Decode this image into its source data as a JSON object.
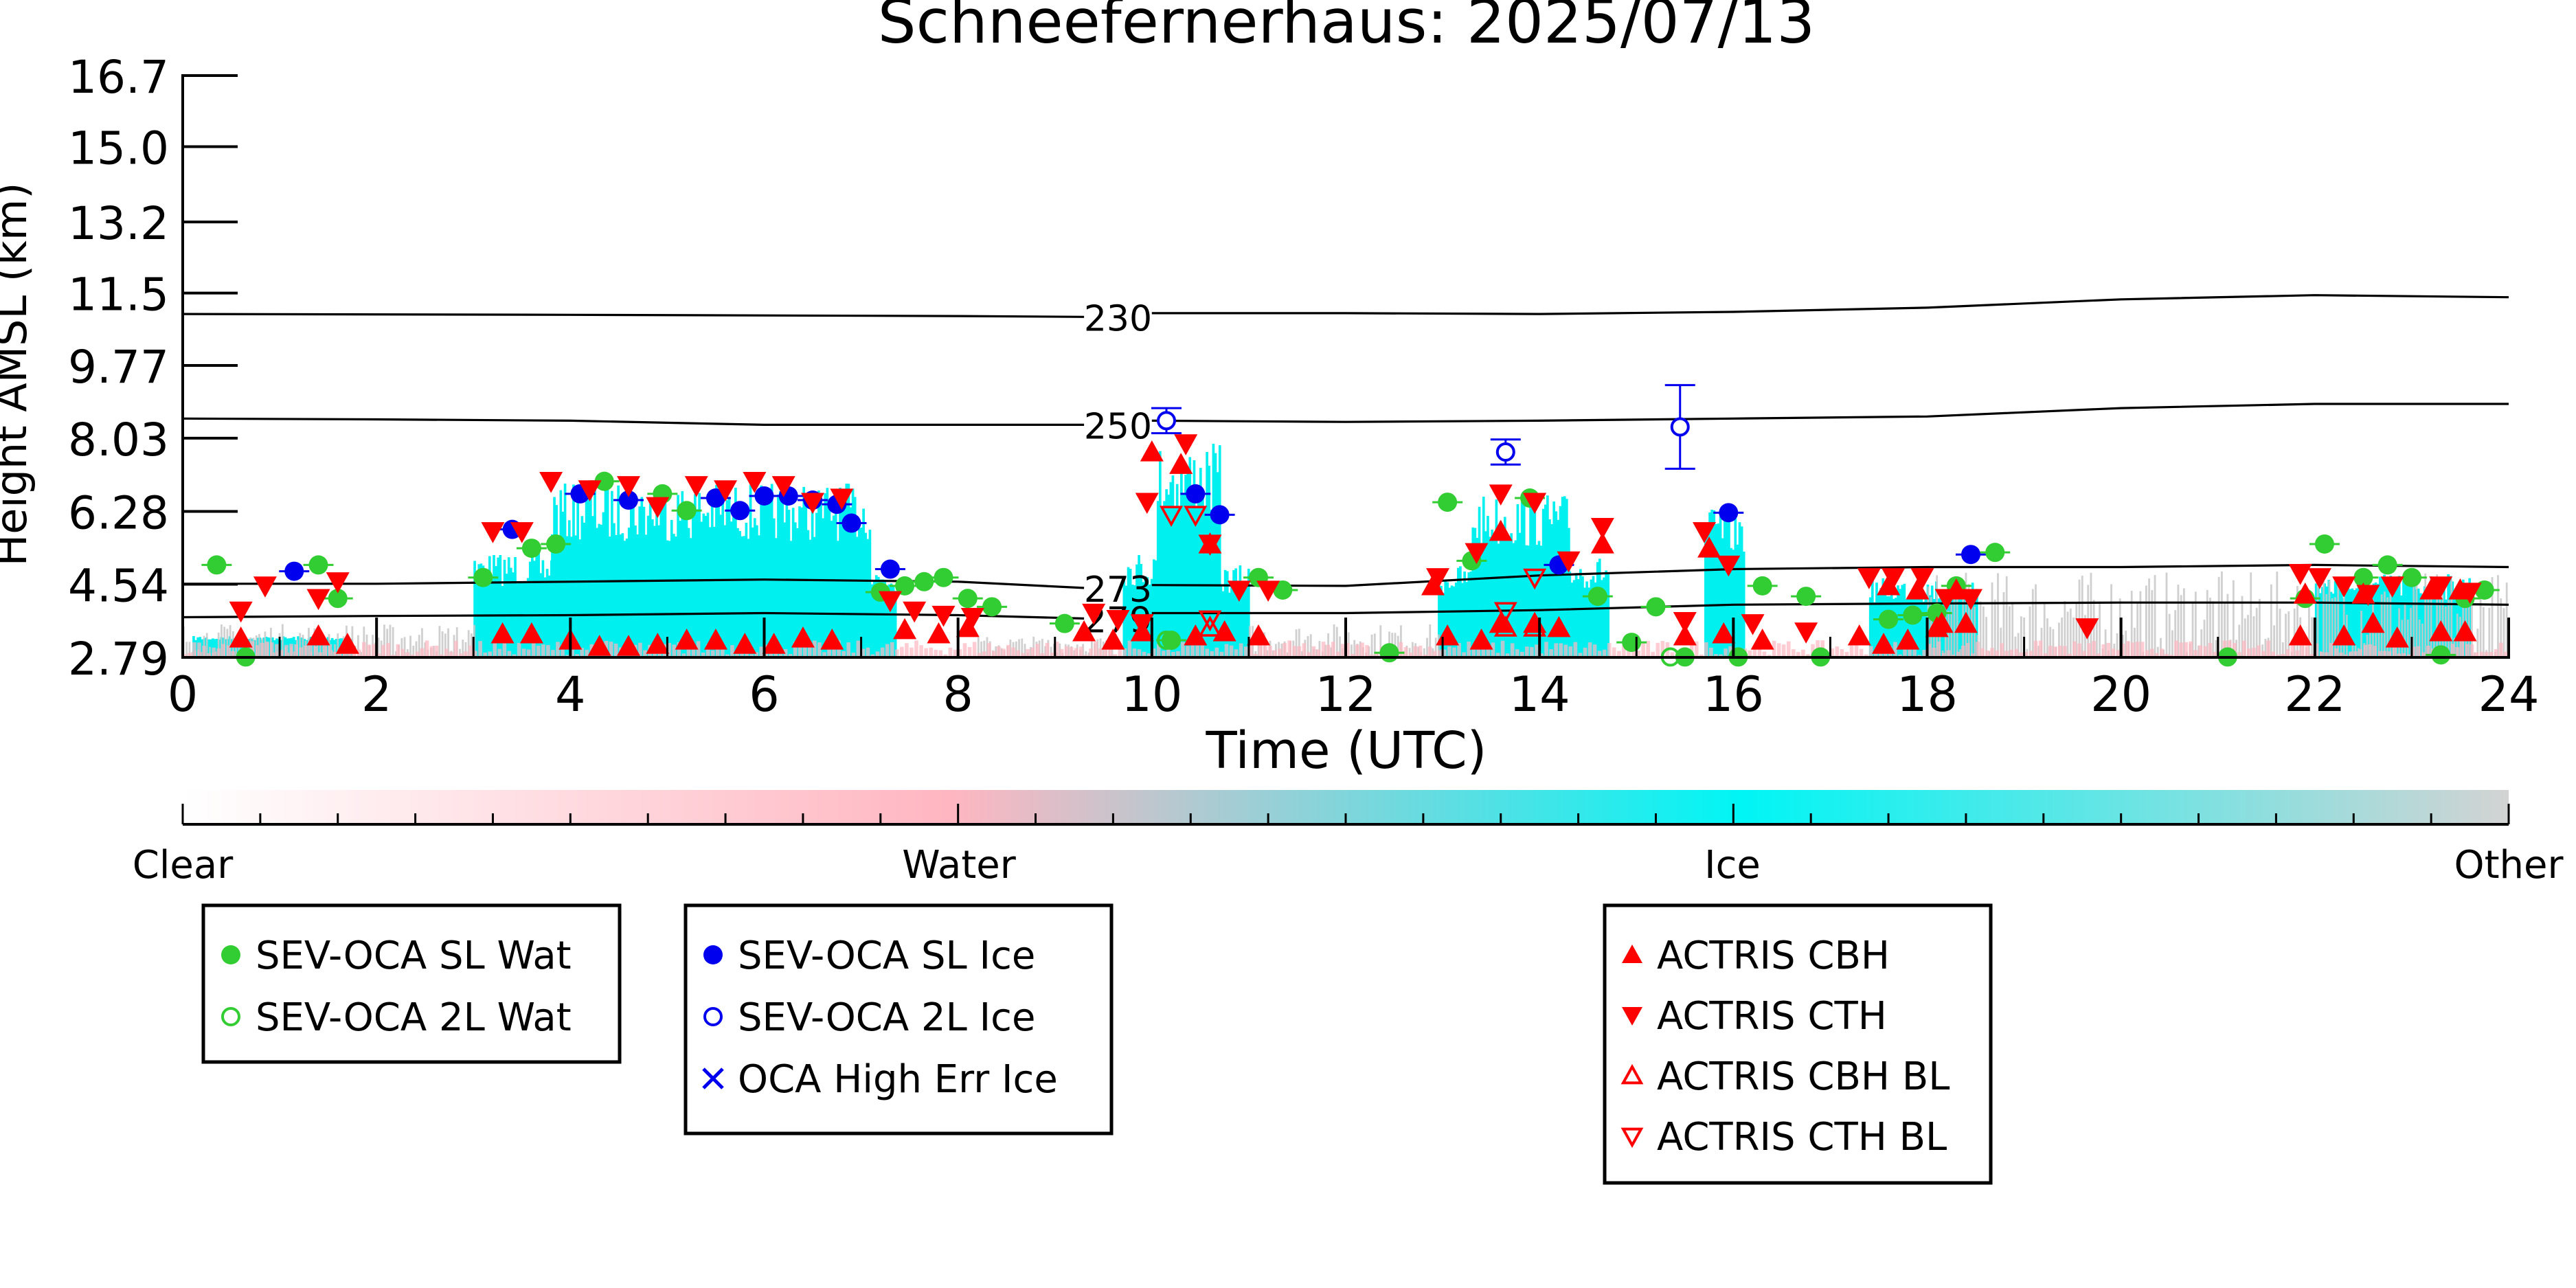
{
  "chart_data": {
    "type": "scatter",
    "title": "Schneefernerhaus: 2025/07/13",
    "xlabel": "Time (UTC)",
    "ylabel": "Height AMSL (km)",
    "xlim": [
      0,
      24
    ],
    "ylim": [
      2.79,
      16.7
    ],
    "x_ticks": [
      "0",
      "2",
      "4",
      "6",
      "8",
      "10",
      "12",
      "14",
      "16",
      "18",
      "20",
      "22",
      "24"
    ],
    "y_ticks": [
      "2.79",
      "4.54",
      "6.28",
      "8.03",
      "9.77",
      "11.5",
      "13.2",
      "15.0",
      "16.7"
    ],
    "grid": false,
    "colorbar": {
      "labels": [
        "Clear",
        "Water",
        "Ice",
        "Other"
      ],
      "colors": [
        "#ffffff",
        "#ffb6c1",
        "#00f5f5",
        "#d3d3d3"
      ]
    },
    "colors": {
      "sl_wat": "#32cd32",
      "wat_2l": "#32cd32",
      "sl_ice": "#0000ee",
      "ice_2l": "#0000ee",
      "actris": "#ff0000",
      "cloud_ice": "#00f0f0",
      "cloud_water": "#ffb6c1",
      "cloud_other": "#c8c8c8"
    },
    "isotherms": [
      {
        "label": "230",
        "points": [
          [
            0,
            11.0
          ],
          [
            4,
            10.98
          ],
          [
            8,
            10.95
          ],
          [
            9.3,
            10.93
          ],
          [
            10,
            11.02
          ],
          [
            12,
            11.02
          ],
          [
            14,
            11.0
          ],
          [
            16,
            11.05
          ],
          [
            18,
            11.15
          ],
          [
            20,
            11.35
          ],
          [
            22,
            11.45
          ],
          [
            24,
            11.4
          ]
        ]
      },
      {
        "label": "250",
        "points": [
          [
            0,
            8.5
          ],
          [
            2,
            8.48
          ],
          [
            4,
            8.45
          ],
          [
            6,
            8.35
          ],
          [
            8,
            8.35
          ],
          [
            9.3,
            8.35
          ],
          [
            10,
            8.45
          ],
          [
            12,
            8.42
          ],
          [
            14,
            8.45
          ],
          [
            16,
            8.5
          ],
          [
            18,
            8.55
          ],
          [
            20,
            8.75
          ],
          [
            22,
            8.85
          ],
          [
            24,
            8.85
          ]
        ]
      },
      {
        "label": "273",
        "points": [
          [
            0,
            4.55
          ],
          [
            2,
            4.55
          ],
          [
            4,
            4.6
          ],
          [
            6,
            4.65
          ],
          [
            8,
            4.6
          ],
          [
            9.3,
            4.45
          ],
          [
            10,
            4.52
          ],
          [
            12,
            4.5
          ],
          [
            14,
            4.75
          ],
          [
            16,
            4.9
          ],
          [
            18,
            4.95
          ],
          [
            20,
            4.95
          ],
          [
            22,
            5.0
          ],
          [
            24,
            4.95
          ]
        ]
      },
      {
        "label": "279",
        "points": [
          [
            0,
            3.75
          ],
          [
            2,
            3.78
          ],
          [
            4,
            3.8
          ],
          [
            6,
            3.85
          ],
          [
            8,
            3.8
          ],
          [
            9.3,
            3.72
          ],
          [
            10,
            3.85
          ],
          [
            12,
            3.85
          ],
          [
            14,
            3.92
          ],
          [
            16,
            4.05
          ],
          [
            18,
            4.08
          ],
          [
            20,
            4.1
          ],
          [
            22,
            4.1
          ],
          [
            24,
            4.05
          ]
        ]
      }
    ],
    "legend": [
      {
        "label": "SEV-OCA SL Wat",
        "marker": "filled-circle",
        "color": "#32cd32"
      },
      {
        "label": "SEV-OCA 2L Wat",
        "marker": "open-circle",
        "color": "#32cd32"
      },
      {
        "label": "SEV-OCA SL Ice",
        "marker": "filled-circle",
        "color": "#0000ee"
      },
      {
        "label": "SEV-OCA 2L Ice",
        "marker": "open-circle",
        "color": "#0000ee"
      },
      {
        "label": "OCA High Err Ice",
        "marker": "cross",
        "color": "#0000ee"
      },
      {
        "label": "ACTRIS CBH",
        "marker": "filled-triangle-up",
        "color": "#ff0000"
      },
      {
        "label": "ACTRIS CTH",
        "marker": "filled-triangle-down",
        "color": "#ff0000"
      },
      {
        "label": "ACTRIS CBH BL",
        "marker": "open-triangle-up",
        "color": "#ff0000"
      },
      {
        "label": "ACTRIS CTH BL",
        "marker": "open-triangle-down",
        "color": "#ff0000"
      }
    ],
    "series": [
      {
        "name": "SEV-OCA SL Wat",
        "points": [
          [
            0.35,
            5.0
          ],
          [
            0.65,
            2.8
          ],
          [
            1.4,
            5.0
          ],
          [
            1.6,
            4.2
          ],
          [
            3.1,
            4.7
          ],
          [
            3.6,
            5.4
          ],
          [
            3.85,
            5.5
          ],
          [
            4.35,
            7.0
          ],
          [
            4.95,
            6.7
          ],
          [
            5.2,
            6.3
          ],
          [
            7.2,
            4.35
          ],
          [
            7.45,
            4.5
          ],
          [
            7.65,
            4.6
          ],
          [
            7.85,
            4.7
          ],
          [
            8.1,
            4.2
          ],
          [
            8.35,
            4.0
          ],
          [
            9.1,
            3.6
          ],
          [
            10.2,
            3.2
          ],
          [
            11.1,
            4.7
          ],
          [
            11.35,
            4.4
          ],
          [
            12.45,
            2.9
          ],
          [
            13.05,
            6.5
          ],
          [
            13.3,
            5.1
          ],
          [
            13.9,
            6.6
          ],
          [
            14.6,
            4.25
          ],
          [
            14.95,
            3.15
          ],
          [
            15.2,
            4.0
          ],
          [
            15.5,
            2.8
          ],
          [
            16.05,
            2.8
          ],
          [
            16.3,
            4.5
          ],
          [
            16.75,
            4.25
          ],
          [
            16.9,
            2.8
          ],
          [
            17.6,
            3.7
          ],
          [
            17.85,
            3.8
          ],
          [
            18.1,
            3.85
          ],
          [
            18.3,
            4.5
          ],
          [
            18.7,
            5.3
          ],
          [
            21.1,
            2.8
          ],
          [
            21.9,
            4.2
          ],
          [
            22.1,
            5.5
          ],
          [
            22.5,
            4.7
          ],
          [
            22.75,
            5.0
          ],
          [
            23.0,
            4.7
          ],
          [
            23.3,
            2.85
          ],
          [
            23.55,
            4.2
          ],
          [
            23.75,
            4.4
          ]
        ]
      },
      {
        "name": "SEV-OCA 2L Wat",
        "points": [
          [
            10.15,
            3.2
          ],
          [
            15.35,
            2.8
          ]
        ]
      },
      {
        "name": "SEV-OCA SL Ice",
        "points": [
          [
            1.15,
            4.85
          ],
          [
            3.4,
            5.85
          ],
          [
            4.1,
            6.7
          ],
          [
            4.6,
            6.55
          ],
          [
            5.5,
            6.6
          ],
          [
            5.75,
            6.3
          ],
          [
            6.0,
            6.65
          ],
          [
            6.25,
            6.65
          ],
          [
            6.5,
            6.55
          ],
          [
            6.75,
            6.45
          ],
          [
            6.9,
            6.0
          ],
          [
            7.3,
            4.9
          ],
          [
            10.45,
            6.7
          ],
          [
            10.7,
            6.2
          ],
          [
            14.2,
            5.0
          ],
          [
            15.95,
            6.25
          ],
          [
            18.45,
            5.25
          ]
        ]
      },
      {
        "name": "SEV-OCA 2L Ice",
        "points": [
          [
            10.15,
            8.45
          ],
          [
            13.65,
            7.7
          ],
          [
            15.45,
            8.3
          ]
        ]
      },
      {
        "name": "SEV-OCA 2L Ice error",
        "points": [
          [
            10.15,
            8.15,
            8.75
          ],
          [
            13.65,
            7.4,
            8.0
          ],
          [
            15.45,
            7.3,
            9.3
          ]
        ]
      },
      {
        "name": "ACTRIS CBH",
        "points": [
          [
            0.6,
            3.25
          ],
          [
            1.4,
            3.3
          ],
          [
            1.7,
            3.1
          ],
          [
            3.3,
            3.35
          ],
          [
            3.6,
            3.35
          ],
          [
            4.0,
            3.2
          ],
          [
            4.3,
            3.05
          ],
          [
            4.6,
            3.05
          ],
          [
            4.9,
            3.1
          ],
          [
            5.2,
            3.2
          ],
          [
            5.5,
            3.2
          ],
          [
            5.8,
            3.1
          ],
          [
            6.1,
            3.1
          ],
          [
            6.4,
            3.25
          ],
          [
            6.7,
            3.2
          ],
          [
            7.45,
            3.45
          ],
          [
            7.8,
            3.35
          ],
          [
            8.1,
            3.5
          ],
          [
            9.3,
            3.4
          ],
          [
            9.6,
            3.2
          ],
          [
            9.9,
            3.4
          ],
          [
            10.45,
            3.3
          ],
          [
            10.75,
            3.4
          ],
          [
            11.1,
            3.3
          ],
          [
            13.05,
            3.3
          ],
          [
            13.4,
            3.2
          ],
          [
            13.6,
            3.6
          ],
          [
            13.95,
            3.6
          ],
          [
            14.2,
            3.5
          ],
          [
            15.5,
            3.3
          ],
          [
            15.9,
            3.35
          ],
          [
            16.3,
            3.2
          ],
          [
            17.3,
            3.3
          ],
          [
            17.55,
            3.1
          ],
          [
            17.8,
            3.2
          ],
          [
            18.1,
            3.5
          ],
          [
            18.4,
            3.6
          ],
          [
            21.85,
            3.3
          ],
          [
            22.3,
            3.3
          ],
          [
            22.6,
            3.6
          ],
          [
            22.85,
            3.25
          ],
          [
            23.3,
            3.4
          ],
          [
            23.55,
            3.4
          ],
          [
            10.0,
            7.7
          ],
          [
            10.3,
            7.4
          ],
          [
            10.6,
            5.5
          ],
          [
            12.9,
            4.5
          ],
          [
            13.6,
            5.8
          ],
          [
            14.65,
            5.5
          ],
          [
            15.75,
            5.4
          ],
          [
            17.6,
            4.5
          ],
          [
            17.9,
            4.4
          ],
          [
            18.3,
            4.4
          ],
          [
            18.15,
            3.6
          ],
          [
            21.9,
            4.3
          ],
          [
            22.5,
            4.3
          ],
          [
            23.2,
            4.4
          ],
          [
            23.5,
            4.4
          ]
        ]
      },
      {
        "name": "ACTRIS CTH",
        "points": [
          [
            0.6,
            3.9
          ],
          [
            0.85,
            4.5
          ],
          [
            1.4,
            4.2
          ],
          [
            1.6,
            4.6
          ],
          [
            3.2,
            5.8
          ],
          [
            3.5,
            5.8
          ],
          [
            3.8,
            7.0
          ],
          [
            4.2,
            6.8
          ],
          [
            4.6,
            6.9
          ],
          [
            4.9,
            6.4
          ],
          [
            5.3,
            6.9
          ],
          [
            5.6,
            6.8
          ],
          [
            5.9,
            7.0
          ],
          [
            6.2,
            6.9
          ],
          [
            6.5,
            6.5
          ],
          [
            6.8,
            6.6
          ],
          [
            7.3,
            4.15
          ],
          [
            7.55,
            3.9
          ],
          [
            7.85,
            3.8
          ],
          [
            8.15,
            3.75
          ],
          [
            9.4,
            3.85
          ],
          [
            9.65,
            3.7
          ],
          [
            9.9,
            3.6
          ],
          [
            9.95,
            6.5
          ],
          [
            10.35,
            7.9
          ],
          [
            10.6,
            5.5
          ],
          [
            10.9,
            4.4
          ],
          [
            11.2,
            4.4
          ],
          [
            12.95,
            4.7
          ],
          [
            13.35,
            5.3
          ],
          [
            13.6,
            6.7
          ],
          [
            13.95,
            6.5
          ],
          [
            14.3,
            5.1
          ],
          [
            14.65,
            5.9
          ],
          [
            15.5,
            3.65
          ],
          [
            15.7,
            5.8
          ],
          [
            15.95,
            5.0
          ],
          [
            16.2,
            3.6
          ],
          [
            16.75,
            3.4
          ],
          [
            17.4,
            4.7
          ],
          [
            17.65,
            4.7
          ],
          [
            17.95,
            4.7
          ],
          [
            18.2,
            4.2
          ],
          [
            18.45,
            4.2
          ],
          [
            19.65,
            3.5
          ],
          [
            21.85,
            4.8
          ],
          [
            22.05,
            4.7
          ],
          [
            22.3,
            4.5
          ],
          [
            22.55,
            4.3
          ],
          [
            22.8,
            4.5
          ],
          [
            23.3,
            4.5
          ],
          [
            23.6,
            4.35
          ]
        ]
      },
      {
        "name": "ACTRIS CBH BL",
        "points": [
          [
            13.65,
            3.5
          ],
          [
            13.95,
            3.5
          ],
          [
            10.6,
            3.5
          ]
        ]
      },
      {
        "name": "ACTRIS CTH BL",
        "points": [
          [
            10.2,
            6.2
          ],
          [
            10.45,
            6.2
          ],
          [
            13.65,
            3.9
          ],
          [
            13.95,
            4.7
          ],
          [
            10.6,
            3.7
          ]
        ]
      }
    ]
  }
}
